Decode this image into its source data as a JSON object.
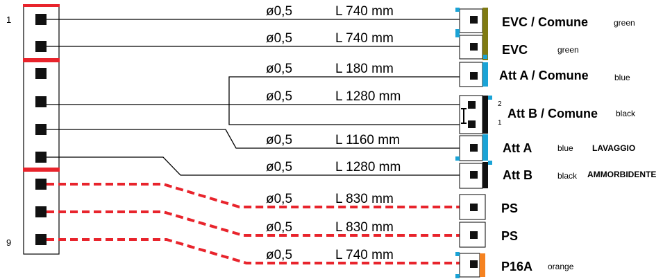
{
  "left_connector": {
    "pin_first": "1",
    "pin_last": "9"
  },
  "colors": {
    "olive": "#7f7a12",
    "blue": "#1aa3d6",
    "black": "#111111",
    "orange": "#f58220",
    "red": "#e8242c",
    "wire": "#000000",
    "dashed_wire": "#e8242c"
  },
  "wires": [
    {
      "diameter": "ø0,5",
      "length": "L 740 mm"
    },
    {
      "diameter": "ø0,5",
      "length": "L 740 mm"
    },
    {
      "diameter": "ø0,5",
      "length": "L 180 mm"
    },
    {
      "diameter": "ø0,5",
      "length": "L 1280 mm"
    },
    {
      "diameter": "ø0,5",
      "length": "L 1160 mm"
    },
    {
      "diameter": "ø0,5",
      "length": "L 1280 mm"
    },
    {
      "diameter": "ø0,5",
      "length": "L 830 mm"
    },
    {
      "diameter": "ø0,5",
      "length": "L 830 mm"
    },
    {
      "diameter": "ø0,5",
      "length": "L 740 mm"
    }
  ],
  "connectors": [
    {
      "label": "EVC / Comune",
      "color_name": "green",
      "extra": "",
      "bar_color": "olive"
    },
    {
      "label": "EVC",
      "color_name": "green",
      "extra": "",
      "bar_color": "olive"
    },
    {
      "label": "Att A / Comune",
      "color_name": "blue",
      "extra": "",
      "bar_color": "blue"
    },
    {
      "label": "Att B / Comune",
      "color_name": "black",
      "extra": "",
      "bar_color": "black"
    },
    {
      "label": "Att A",
      "color_name": "blue",
      "extra": "LAVAGGIO",
      "bar_color": "blue"
    },
    {
      "label": "Att B",
      "color_name": "black",
      "extra": "AMMORBIDENTE",
      "bar_color": "black"
    },
    {
      "label": "PS",
      "color_name": "",
      "extra": "",
      "bar_color": ""
    },
    {
      "label": "PS",
      "color_name": "",
      "extra": "",
      "bar_color": ""
    },
    {
      "label": "P16A",
      "color_name": "orange",
      "extra": "",
      "bar_color": "orange"
    }
  ],
  "att_b_pins": {
    "top": "2",
    "bottom": "1"
  }
}
